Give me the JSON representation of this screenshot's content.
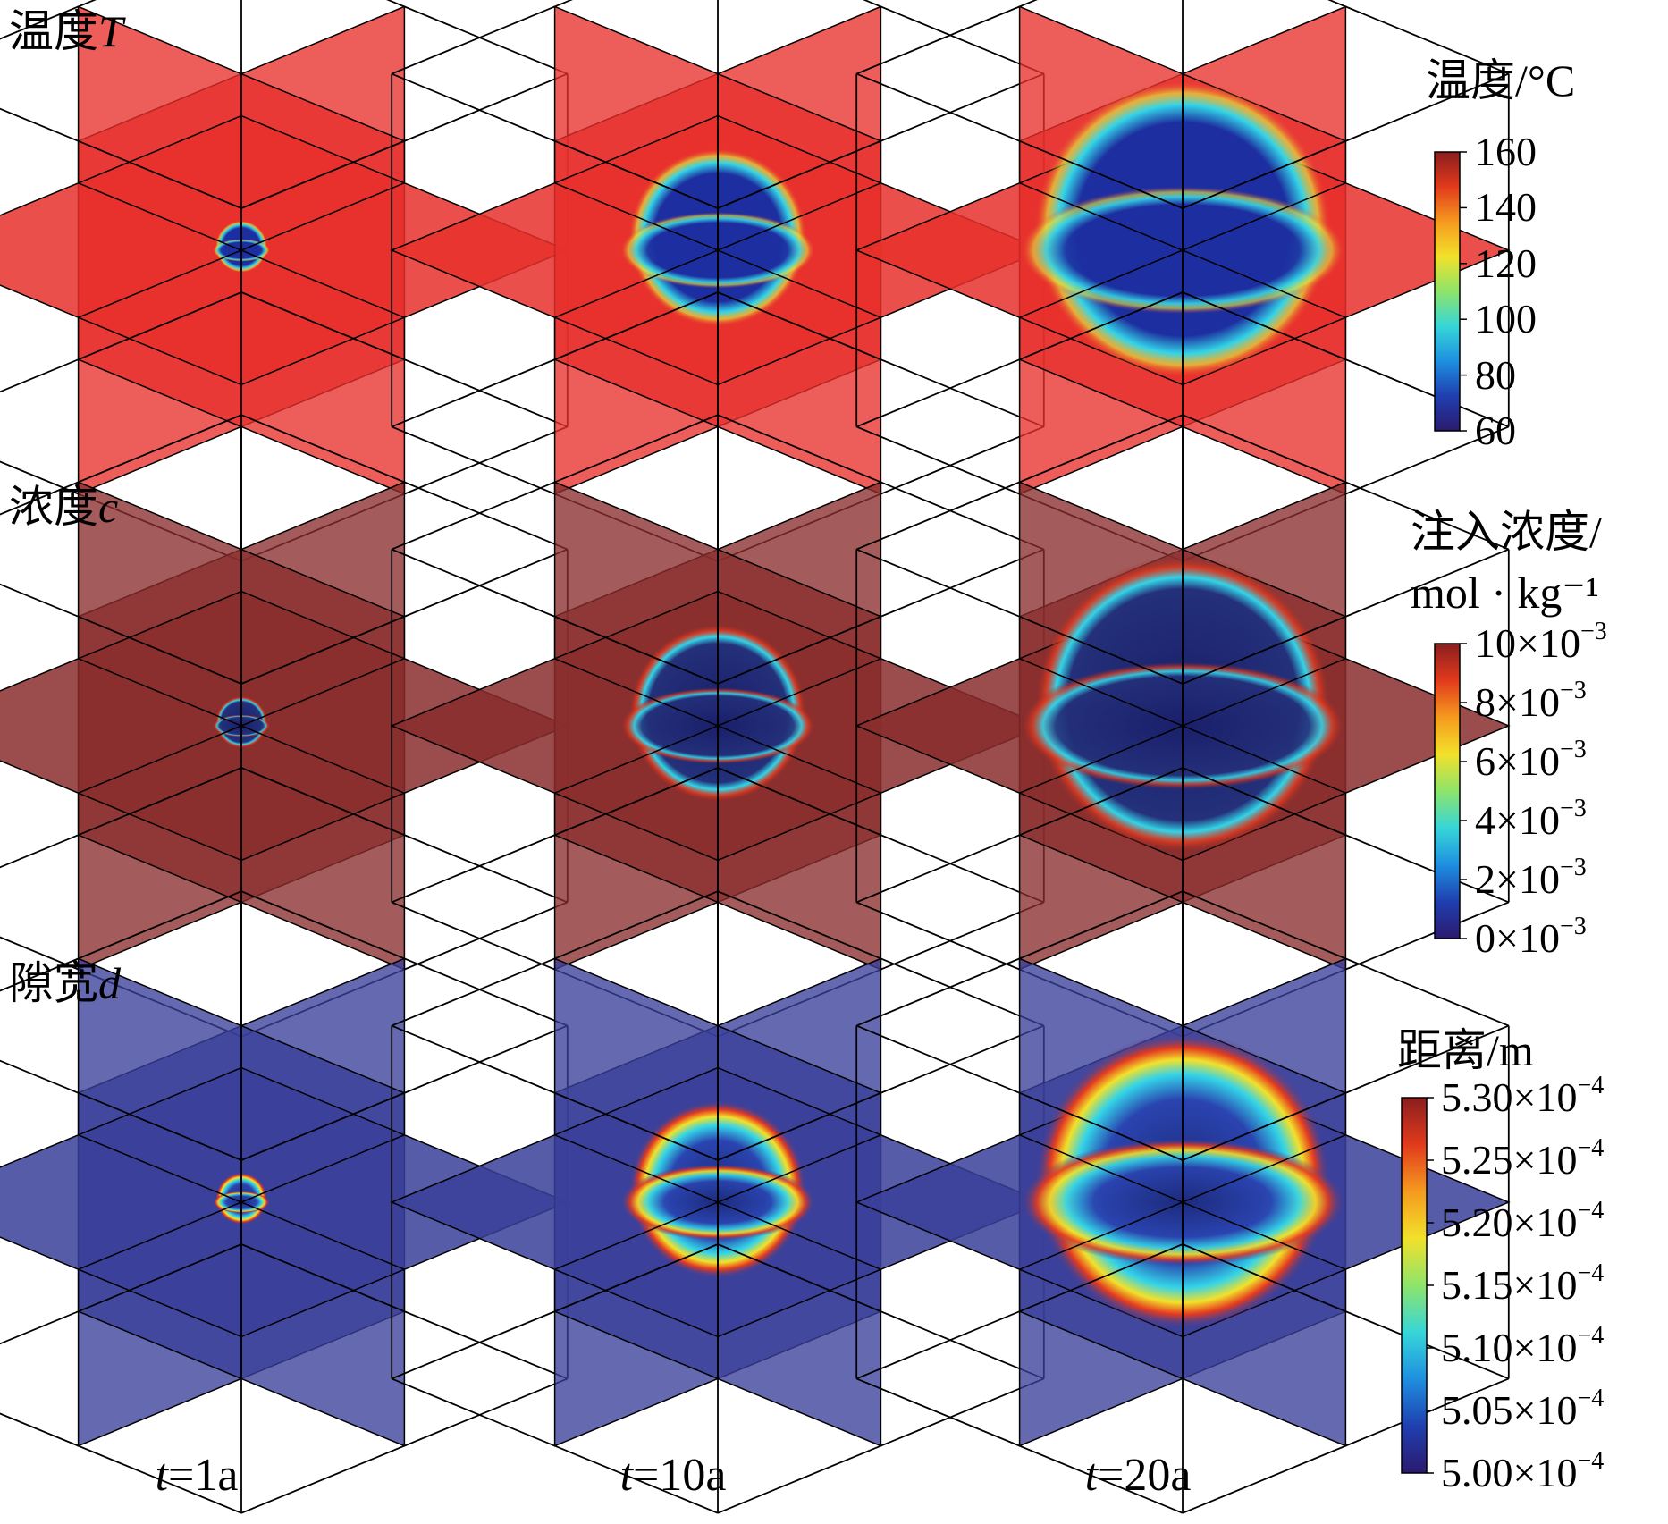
{
  "rows": [
    {
      "label": "温度",
      "var": "T",
      "field": "temp"
    },
    {
      "label": "浓度",
      "var": "c",
      "field": "conc"
    },
    {
      "label": "隙宽",
      "var": "d",
      "field": "gap"
    }
  ],
  "columns": [
    {
      "var": "t",
      "eq": "=",
      "value": "1a",
      "radius": 0.14
    },
    {
      "var": "t",
      "eq": "=",
      "value": "10a",
      "radius": 0.48
    },
    {
      "var": "t",
      "eq": "=",
      "value": "20a",
      "radius": 0.8
    }
  ],
  "colorbars": [
    {
      "title_lines": [
        "温度/°C"
      ],
      "ticks": [
        "160",
        "140",
        "120",
        "100",
        "80",
        "60"
      ],
      "exponents": []
    },
    {
      "title_lines": [
        "注入浓度/",
        "mol · kg⁻¹"
      ],
      "ticks": [
        "10×10",
        "8×10",
        "6×10",
        "4×10",
        "2×10",
        "0×10"
      ],
      "exponents": [
        "−3",
        "−3",
        "−3",
        "−3",
        "−3",
        "−3"
      ]
    },
    {
      "title_lines": [
        "距离/m"
      ],
      "ticks": [
        "5.30×10",
        "5.25×10",
        "5.20×10",
        "5.15×10",
        "5.10×10",
        "5.05×10",
        "5.00×10"
      ],
      "exponents": [
        "−4",
        "−4",
        "−4",
        "−4",
        "−4",
        "−4",
        "−4"
      ]
    }
  ],
  "colors": {
    "temp_plane": "#e8302c",
    "conc_plane": "#8a2d2d",
    "gap_plane": "#3a3f9a",
    "front_blue": "#1d2fa0",
    "front_cyan": "#33d4e8",
    "front_red": "#e53a1e",
    "cube_edge": "#000000",
    "jet": [
      "#2b1a6e",
      "#1f3fb0",
      "#1e8fe0",
      "#37d6d8",
      "#8ee46a",
      "#f2e12a",
      "#f59a1e",
      "#e23a1c",
      "#8a1e1e"
    ]
  }
}
